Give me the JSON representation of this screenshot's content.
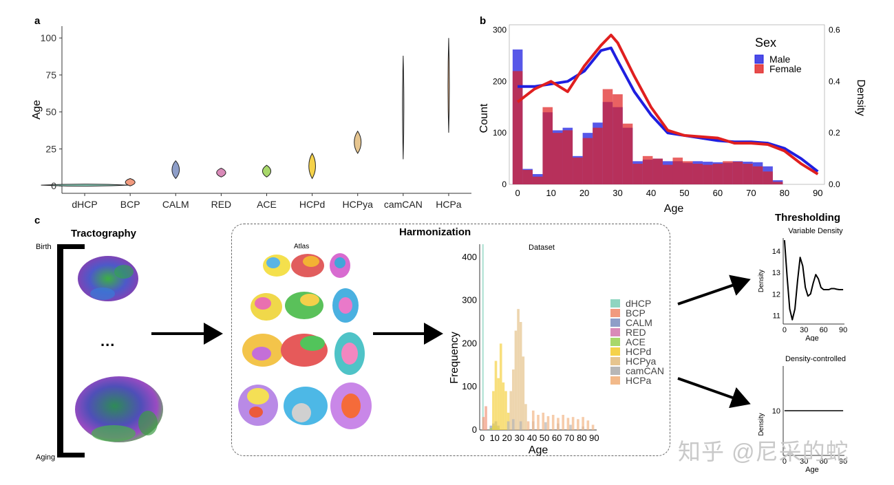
{
  "panel_labels": {
    "a": "a",
    "b": "b",
    "c": "c"
  },
  "chart_data": [
    {
      "id": "panel-a",
      "type": "violin",
      "ylabel": "Age",
      "ylim": [
        -5,
        108
      ],
      "yticks": [
        0,
        25,
        50,
        75,
        100
      ],
      "categories": [
        "dHCP",
        "BCP",
        "CALM",
        "RED",
        "ACE",
        "HCPd",
        "HCPya",
        "camCAN",
        "HCPa"
      ],
      "colors": [
        "#8fd5c0",
        "#f19a7e",
        "#8e9ec8",
        "#d98ab8",
        "#a8d86a",
        "#f5d24a",
        "#e6c58f",
        "#b7b7b7",
        "#f2b98a"
      ],
      "ranges": [
        [
          0,
          1
        ],
        [
          0,
          5
        ],
        [
          5,
          17
        ],
        [
          6,
          12
        ],
        [
          6,
          14
        ],
        [
          5,
          22
        ],
        [
          22,
          37
        ],
        [
          18,
          88
        ],
        [
          36,
          100
        ]
      ]
    },
    {
      "id": "panel-b",
      "type": "histogram+density",
      "xlabel": "Age",
      "ylabel_left": "Count",
      "ylabel_right": "Density",
      "xticks": [
        0,
        10,
        20,
        30,
        40,
        50,
        60,
        70,
        80,
        90
      ],
      "yticks_left": [
        0,
        100,
        200,
        300
      ],
      "yticks_right": [
        "0.0",
        "0.2",
        "0.4",
        "0.6"
      ],
      "legend_title": "Sex",
      "bin_width": 3,
      "series": [
        {
          "name": "Male",
          "color": "#1f1fe0",
          "counts": [
            262,
            30,
            20,
            140,
            105,
            110,
            55,
            100,
            120,
            160,
            150,
            110,
            45,
            48,
            50,
            45,
            45,
            42,
            45,
            44,
            43,
            42,
            45,
            44,
            43,
            35,
            8
          ]
        },
        {
          "name": "Female",
          "color": "#e01f1f",
          "counts": [
            220,
            28,
            15,
            150,
            100,
            105,
            52,
            90,
            110,
            185,
            175,
            118,
            40,
            55,
            50,
            38,
            52,
            45,
            40,
            38,
            40,
            45,
            44,
            40,
            35,
            25,
            5
          ]
        }
      ],
      "density": {
        "x": [
          0,
          5,
          10,
          15,
          20,
          25,
          28,
          30,
          35,
          40,
          45,
          50,
          55,
          60,
          65,
          70,
          75,
          80,
          85,
          90
        ],
        "Male": [
          0.38,
          0.38,
          0.39,
          0.4,
          0.44,
          0.52,
          0.53,
          0.48,
          0.36,
          0.27,
          0.2,
          0.19,
          0.18,
          0.17,
          0.165,
          0.165,
          0.16,
          0.14,
          0.1,
          0.05
        ],
        "Female": [
          0.32,
          0.37,
          0.4,
          0.36,
          0.46,
          0.54,
          0.58,
          0.55,
          0.42,
          0.3,
          0.21,
          0.19,
          0.185,
          0.18,
          0.16,
          0.16,
          0.155,
          0.13,
          0.08,
          0.04
        ]
      }
    },
    {
      "id": "dataset-hist",
      "type": "histogram",
      "title": "Dataset",
      "xlabel": "Age",
      "ylabel": "Frequency",
      "xticks": [
        0,
        10,
        20,
        30,
        40,
        50,
        60,
        70,
        80,
        90
      ],
      "yticks": [
        0,
        100,
        200,
        300,
        400
      ],
      "legend": [
        "dHCP",
        "BCP",
        "CALM",
        "RED",
        "ACE",
        "HCPd",
        "HCPya",
        "camCAN",
        "HCPa"
      ],
      "legend_colors": [
        "#8fd5c0",
        "#f19a7e",
        "#8e9ec8",
        "#d98ab8",
        "#a8d86a",
        "#f5d24a",
        "#e6c58f",
        "#b7b7b7",
        "#f2b98a"
      ],
      "bin_width": 2,
      "stacks": {
        "dHCP": {
          "0": 430
        },
        "BCP": {
          "0": 30,
          "2": 55
        },
        "CALM": {
          "6": 10,
          "8": 15,
          "10": 20,
          "12": 10
        },
        "RED": {
          "6": 5,
          "8": 10,
          "10": 8
        },
        "ACE": {
          "6": 5,
          "8": 10,
          "10": 10,
          "12": 5
        },
        "HCPd": {
          "8": 90,
          "10": 160,
          "12": 120,
          "14": 200,
          "16": 110,
          "18": 90,
          "20": 40
        },
        "HCPya": {
          "22": 90,
          "24": 140,
          "26": 230,
          "28": 280,
          "30": 250,
          "32": 170,
          "34": 60
        },
        "camCAN": {
          "20": 20,
          "24": 25,
          "30": 20,
          "40": 20,
          "50": 18,
          "60": 15,
          "70": 12,
          "80": 8
        },
        "HCPa": {
          "36": 20,
          "40": 45,
          "44": 35,
          "48": 40,
          "52": 32,
          "56": 35,
          "60": 28,
          "64": 35,
          "68": 28,
          "72": 30,
          "76": 25,
          "80": 30,
          "84": 22,
          "88": 12
        }
      }
    },
    {
      "id": "variable-density",
      "type": "line",
      "title": "Variable Density",
      "xlabel": "Age",
      "ylabel": "Density",
      "xticks": [
        0,
        30,
        60,
        90
      ],
      "yticks": [
        11,
        12,
        13,
        14
      ],
      "ylim": [
        10.6,
        14.6
      ],
      "x": [
        0,
        4,
        8,
        12,
        16,
        20,
        24,
        28,
        32,
        36,
        40,
        44,
        48,
        52,
        56,
        60,
        64,
        68,
        72,
        76,
        80,
        84,
        88,
        90
      ],
      "y": [
        14.5,
        12.8,
        11.3,
        10.8,
        11.3,
        12.6,
        13.7,
        13.3,
        12.3,
        11.9,
        12.0,
        12.5,
        12.9,
        12.7,
        12.3,
        12.2,
        12.2,
        12.2,
        12.25,
        12.25,
        12.22,
        12.2,
        12.2,
        12.2
      ]
    },
    {
      "id": "density-controlled",
      "type": "line",
      "title": "Density-controlled",
      "xlabel": "Age",
      "ylabel": "Density",
      "xticks": [
        0,
        30,
        60,
        90
      ],
      "yticks": [
        10
      ],
      "x": [
        0,
        90
      ],
      "y": [
        10,
        10
      ]
    }
  ],
  "panel_c": {
    "tractography_title": "Tractography",
    "birth_label": "Birth",
    "aging_label": "Aging",
    "ellipsis": "...",
    "harmonization_title": "Harmonization",
    "atlas_label": "Atlas",
    "thresholding_title": "Thresholding"
  },
  "watermark": "知乎 @尼采的蛇"
}
